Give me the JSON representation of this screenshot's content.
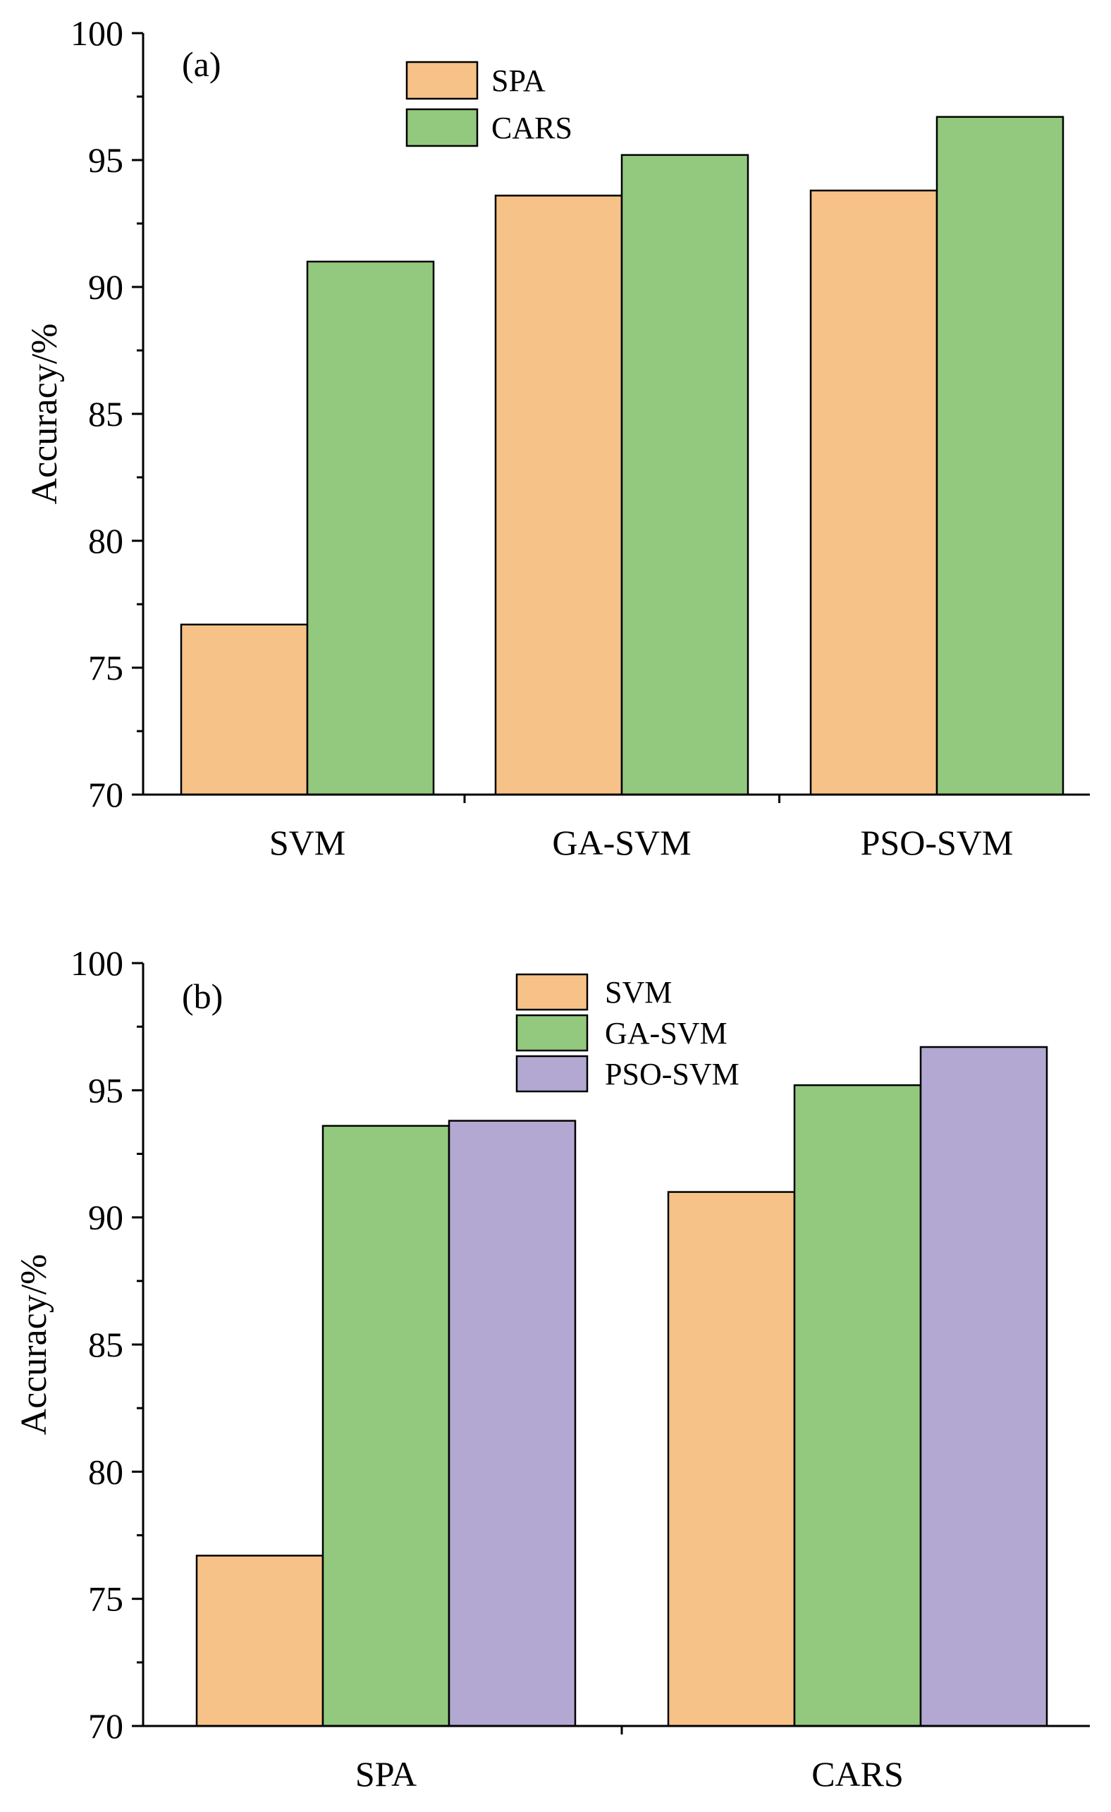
{
  "colors": {
    "orange": "#F7C287",
    "green": "#92C97E",
    "purple": "#B2A8D2",
    "stroke": "#000000",
    "background": "#ffffff"
  },
  "chart_data": [
    {
      "type": "bar",
      "panel_label": "(a)",
      "ylabel": "Accuracy/%",
      "ylim": [
        70,
        100
      ],
      "yticks": [
        70,
        75,
        80,
        85,
        90,
        95,
        100
      ],
      "categories": [
        "SVM",
        "GA-SVM",
        "PSO-SVM"
      ],
      "series": [
        {
          "name": "SPA",
          "color": "#F7C287",
          "values": [
            76.7,
            93.6,
            93.8
          ]
        },
        {
          "name": "CARS",
          "color": "#92C97E",
          "values": [
            91.0,
            95.2,
            96.7
          ]
        }
      ],
      "legend_position": "top-center",
      "grid": false
    },
    {
      "type": "bar",
      "panel_label": "(b)",
      "ylabel": "Accuracy/%",
      "ylim": [
        70,
        100
      ],
      "yticks": [
        70,
        75,
        80,
        85,
        90,
        95,
        100
      ],
      "categories": [
        "SPA",
        "CARS"
      ],
      "series": [
        {
          "name": "SVM",
          "color": "#F7C287",
          "values": [
            76.7,
            91.0
          ]
        },
        {
          "name": "GA-SVM",
          "color": "#92C97E",
          "values": [
            93.6,
            95.2
          ]
        },
        {
          "name": "PSO-SVM",
          "color": "#B2A8D2",
          "values": [
            93.8,
            96.7
          ]
        }
      ],
      "legend_position": "top-center",
      "grid": false
    }
  ]
}
